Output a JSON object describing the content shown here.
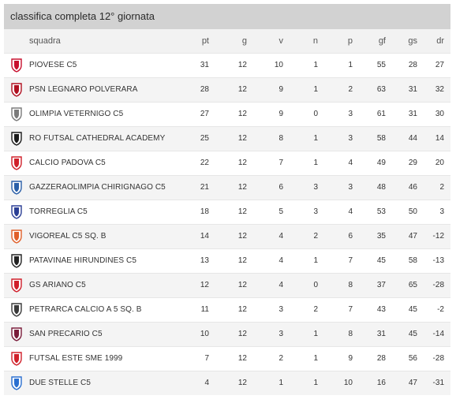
{
  "title": "classifica completa 12° giornata",
  "columns": {
    "squadra": "squadra",
    "pt": "pt",
    "g": "g",
    "v": "v",
    "n": "n",
    "p": "p",
    "gf": "gf",
    "gs": "gs",
    "dr": "dr"
  },
  "rows": [
    {
      "name": "PIOVESE C5",
      "logo": "piovese-crest-icon",
      "color": "#c8102e",
      "pt": "31",
      "g": "12",
      "v": "10",
      "n": "1",
      "p": "1",
      "gf": "55",
      "gs": "28",
      "dr": "27"
    },
    {
      "name": "PSN LEGNARO POLVERARA",
      "logo": "psn-legnaro-crest-icon",
      "color": "#b01020",
      "pt": "28",
      "g": "12",
      "v": "9",
      "n": "1",
      "p": "2",
      "gf": "63",
      "gs": "31",
      "dr": "32"
    },
    {
      "name": "OLIMPIA VETERNIGO C5",
      "logo": "olimpia-veternigo-crest-icon",
      "color": "#7a7a7a",
      "pt": "27",
      "g": "12",
      "v": "9",
      "n": "0",
      "p": "3",
      "gf": "61",
      "gs": "31",
      "dr": "30"
    },
    {
      "name": "RO FUTSAL CATHEDRAL ACADEMY",
      "logo": "ro-futsal-crest-icon",
      "color": "#1a1a1a",
      "pt": "25",
      "g": "12",
      "v": "8",
      "n": "1",
      "p": "3",
      "gf": "58",
      "gs": "44",
      "dr": "14"
    },
    {
      "name": "CALCIO PADOVA C5",
      "logo": "calcio-padova-crest-icon",
      "color": "#d0202a",
      "pt": "22",
      "g": "12",
      "v": "7",
      "n": "1",
      "p": "4",
      "gf": "49",
      "gs": "29",
      "dr": "20"
    },
    {
      "name": "GAZZERAOLIMPIA CHIRIGNAGO C5",
      "logo": "gazzera-olimpia-crest-icon",
      "color": "#2a5fa8",
      "pt": "21",
      "g": "12",
      "v": "6",
      "n": "3",
      "p": "3",
      "gf": "48",
      "gs": "46",
      "dr": "2"
    },
    {
      "name": "TORREGLIA C5",
      "logo": "torreglia-crest-icon",
      "color": "#2b3f95",
      "pt": "18",
      "g": "12",
      "v": "5",
      "n": "3",
      "p": "4",
      "gf": "53",
      "gs": "50",
      "dr": "3"
    },
    {
      "name": "VIGOREAL C5 Sq. B",
      "logo": "vigoreal-crest-icon",
      "color": "#e0602a",
      "pt": "14",
      "g": "12",
      "v": "4",
      "n": "2",
      "p": "6",
      "gf": "35",
      "gs": "47",
      "dr": "-12"
    },
    {
      "name": "PATAVINAE HIRUNDINES C5",
      "logo": "patavinae-hirundines-crest-icon",
      "color": "#222222",
      "pt": "13",
      "g": "12",
      "v": "4",
      "n": "1",
      "p": "7",
      "gf": "45",
      "gs": "58",
      "dr": "-13"
    },
    {
      "name": "GS ARIANO C5",
      "logo": "gs-ariano-crest-icon",
      "color": "#d01e2a",
      "pt": "12",
      "g": "12",
      "v": "4",
      "n": "0",
      "p": "8",
      "gf": "37",
      "gs": "65",
      "dr": "-28"
    },
    {
      "name": "PETRARCA CALCIO A 5 Sq. B",
      "logo": "petrarca-crest-icon",
      "color": "#3a3a3a",
      "pt": "11",
      "g": "12",
      "v": "3",
      "n": "2",
      "p": "7",
      "gf": "43",
      "gs": "45",
      "dr": "-2"
    },
    {
      "name": "SAN PRECARIO C5",
      "logo": "san-precario-crest-icon",
      "color": "#7a1c3a",
      "pt": "10",
      "g": "12",
      "v": "3",
      "n": "1",
      "p": "8",
      "gf": "31",
      "gs": "45",
      "dr": "-14"
    },
    {
      "name": "FUTSAL ESTE SME 1999",
      "logo": "futsal-este-crest-icon",
      "color": "#d0202a",
      "pt": "7",
      "g": "12",
      "v": "2",
      "n": "1",
      "p": "9",
      "gf": "28",
      "gs": "56",
      "dr": "-28"
    },
    {
      "name": "DUE STELLE C5",
      "logo": "due-stelle-crest-icon",
      "color": "#2a6fd0",
      "pt": "4",
      "g": "12",
      "v": "1",
      "n": "1",
      "p": "10",
      "gf": "16",
      "gs": "47",
      "dr": "-31"
    }
  ]
}
